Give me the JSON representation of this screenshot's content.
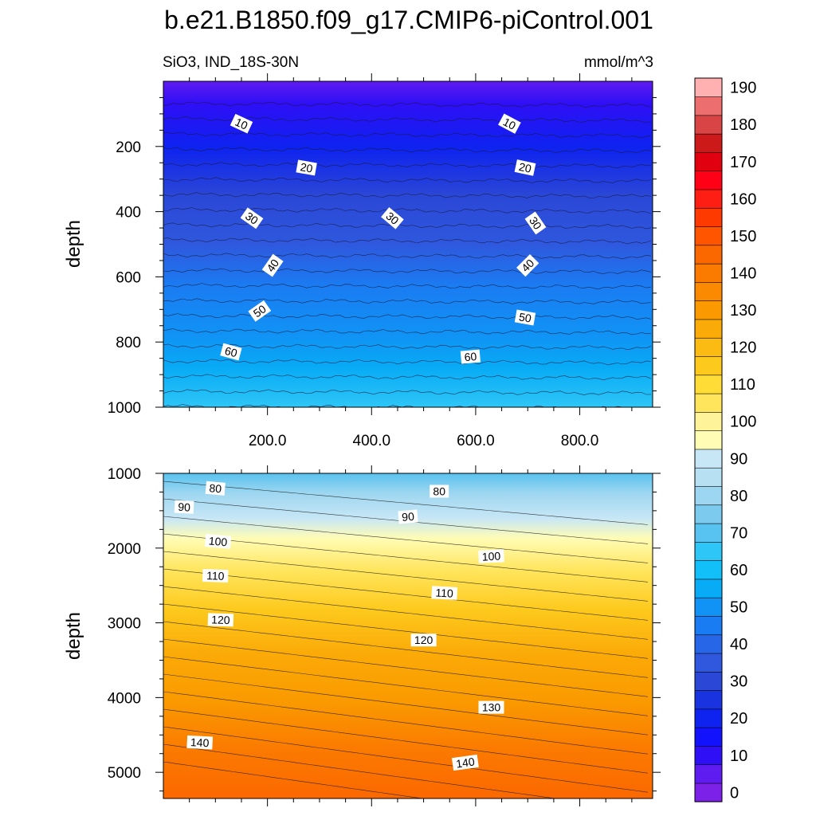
{
  "title": "b.e21.B1850.f09_g17.CMIP6-piControl.001",
  "panel_left_label": "SiO3, IND_18S-30N",
  "units": "mmol/m^3",
  "colorbar": {
    "levels": [
      -5,
      0,
      5,
      10,
      15,
      20,
      25,
      30,
      35,
      40,
      45,
      50,
      55,
      60,
      65,
      70,
      75,
      80,
      85,
      90,
      95,
      100,
      105,
      110,
      115,
      120,
      125,
      130,
      135,
      140,
      145,
      150,
      155,
      160,
      165,
      170,
      175,
      180,
      185,
      190,
      195
    ],
    "colors": [
      "#7b21e8",
      "#5f1cf0",
      "#2e0ff6",
      "#1212fc",
      "#0e22f0",
      "#1a33e0",
      "#2a47d6",
      "#2f58de",
      "#2866e8",
      "#1a7cf2",
      "#1093f5",
      "#08abf5",
      "#12bff8",
      "#2ec6f7",
      "#58c2f0",
      "#7ccbee",
      "#9dd6f0",
      "#b7e0f3",
      "#c8e7f6",
      "#fffcb5",
      "#fff39a",
      "#ffe55c",
      "#ffdd36",
      "#fdc91c",
      "#fcbb12",
      "#fbab08",
      "#fa9a00",
      "#fb8a00",
      "#fb7a00",
      "#fb6800",
      "#ff5400",
      "#ff3a00",
      "#ff1e14",
      "#ff0016",
      "#e00010",
      "#cc1a1a",
      "#d94444",
      "#ec6e6e",
      "#ffb0b0"
    ],
    "tick_labels": [
      "0",
      "10",
      "20",
      "30",
      "40",
      "50",
      "60",
      "70",
      "80",
      "90",
      "100",
      "110",
      "120",
      "130",
      "140",
      "150",
      "160",
      "170",
      "180",
      "190"
    ]
  },
  "chart_data": [
    {
      "type": "contour",
      "panel": "upper",
      "xlabel": "",
      "ylabel": "depth",
      "xlim": [
        0,
        940
      ],
      "ylim": [
        1000,
        0
      ],
      "x_tick_labels": [
        "200.0",
        "400.0",
        "600.0",
        "800.0"
      ],
      "y_tick_labels": [
        "200",
        "400",
        "600",
        "800",
        "1000"
      ],
      "contour_labels": [
        {
          "text": "10",
          "x": 150,
          "z": 130
        },
        {
          "text": "10",
          "x": 665,
          "z": 130
        },
        {
          "text": "20",
          "x": 275,
          "z": 265
        },
        {
          "text": "20",
          "x": 695,
          "z": 265
        },
        {
          "text": "30",
          "x": 170,
          "z": 420
        },
        {
          "text": "30",
          "x": 440,
          "z": 420
        },
        {
          "text": "30",
          "x": 715,
          "z": 435
        },
        {
          "text": "40",
          "x": 210,
          "z": 565
        },
        {
          "text": "40",
          "x": 700,
          "z": 565
        },
        {
          "text": "50",
          "x": 185,
          "z": 705
        },
        {
          "text": "50",
          "x": 695,
          "z": 725
        },
        {
          "text": "60",
          "x": 130,
          "z": 830
        },
        {
          "text": "60",
          "x": 590,
          "z": 845
        }
      ]
    },
    {
      "type": "contour",
      "panel": "lower",
      "xlabel": "",
      "ylabel": "depth",
      "xlim": [
        0,
        940
      ],
      "ylim": [
        5350,
        1000
      ],
      "y_tick_labels": [
        "1000",
        "2000",
        "3000",
        "4000",
        "5000"
      ],
      "contour_labels": [
        {
          "text": "80",
          "x": 100,
          "z": 1200
        },
        {
          "text": "80",
          "x": 530,
          "z": 1240
        },
        {
          "text": "90",
          "x": 40,
          "z": 1450
        },
        {
          "text": "90",
          "x": 470,
          "z": 1580
        },
        {
          "text": "100",
          "x": 105,
          "z": 1910
        },
        {
          "text": "100",
          "x": 630,
          "z": 2110
        },
        {
          "text": "110",
          "x": 100,
          "z": 2370
        },
        {
          "text": "110",
          "x": 540,
          "z": 2600
        },
        {
          "text": "120",
          "x": 110,
          "z": 2960
        },
        {
          "text": "120",
          "x": 500,
          "z": 3230
        },
        {
          "text": "130",
          "x": 630,
          "z": 4130
        },
        {
          "text": "140",
          "x": 70,
          "z": 4600
        },
        {
          "text": "140",
          "x": 580,
          "z": 4870
        }
      ]
    }
  ]
}
